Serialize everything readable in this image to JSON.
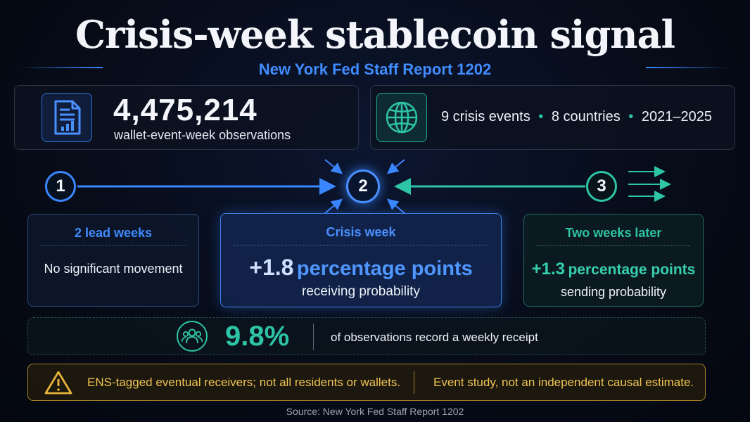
{
  "title": "Crisis-week stablecoin signal",
  "subtitle": "New York Fed Staff Report 1202",
  "observations": {
    "icon": "document-chart-icon",
    "value": "4,475,214",
    "label": "wallet-event-week observations"
  },
  "scope": {
    "icon": "globe-icon",
    "events": "9 crisis events",
    "countries": "8 countries",
    "years": "2021–2025",
    "separator": "•"
  },
  "steps": [
    "1",
    "2",
    "3"
  ],
  "panels": {
    "lead": {
      "title": "2 lead weeks",
      "body": "No significant movement"
    },
    "crisis": {
      "title": "Crisis week",
      "value": "+1.8",
      "unit": "percentage points",
      "detail": "receiving probability"
    },
    "later": {
      "title": "Two weeks later",
      "value": "+1.3",
      "unit": "percentage points",
      "detail": "sending probability"
    }
  },
  "receipt": {
    "icon": "people-icon",
    "value": "9.8%",
    "label": "of observations record a weekly receipt"
  },
  "caveats": {
    "icon": "warning-icon",
    "left": "ENS-tagged eventual receivers; not all residents or wallets.",
    "right": "Event study, not an independent causal estimate."
  },
  "source": "Source: New York Fed Staff Report 1202",
  "colors": {
    "blue": "#3a86ff",
    "teal": "#2ec4a6",
    "amber": "#e6b23a"
  }
}
